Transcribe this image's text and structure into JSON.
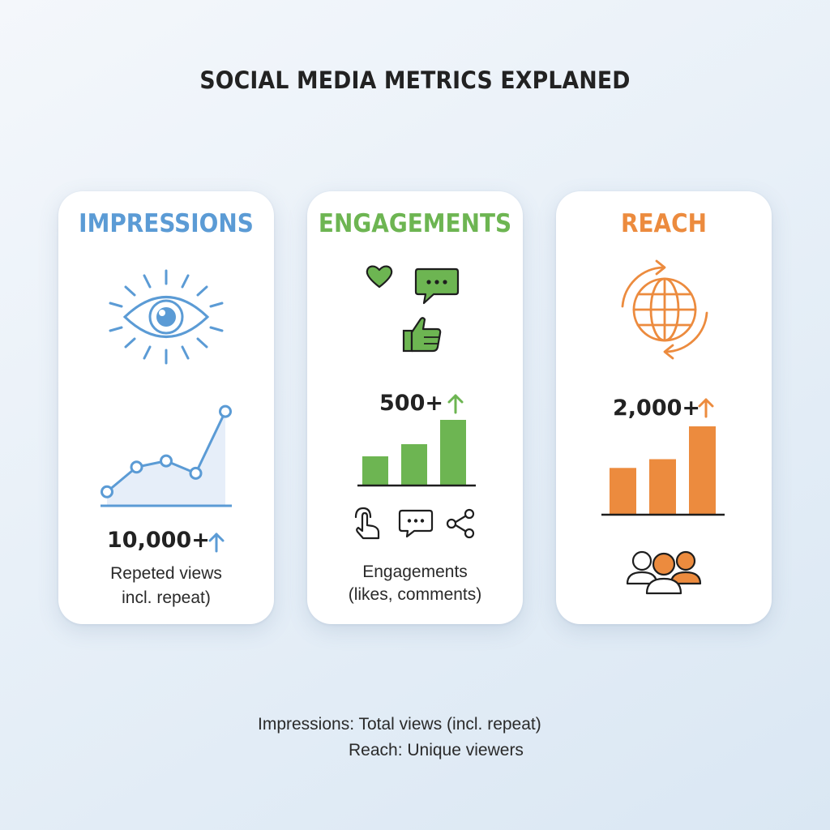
{
  "title": "SOCIAL MEDIA METRICS EXPLANED",
  "colors": {
    "impressions": "#5b9bd5",
    "engagements": "#6db552",
    "reach": "#ec8b3e"
  },
  "cards": [
    {
      "id": "impressions",
      "title": "IMPRESSIONS",
      "stat": "10,000+",
      "stat_trend": "up",
      "description_lines": [
        "Repeted views",
        "incl. repeat)"
      ],
      "icons": [
        "eye-icon",
        "line-chart-icon",
        "up-arrow-icon"
      ]
    },
    {
      "id": "engagements",
      "title": "ENGAGEMENTS",
      "stat": "500+",
      "stat_trend": "up",
      "description_lines": [
        "Engagements",
        "(likes, comments)"
      ],
      "icons": [
        "heart-icon",
        "chat-bubble-icon",
        "thumbs-up-icon",
        "tap-icon",
        "comment-icon",
        "share-icon"
      ]
    },
    {
      "id": "reach",
      "title": "REACH",
      "stat": "2,000+",
      "stat_trend": "up",
      "description_lines": [],
      "icons": [
        "globe-icon",
        "people-icon",
        "up-arrow-icon"
      ]
    }
  ],
  "chart_data": [
    {
      "type": "line",
      "card": "impressions",
      "x": [
        1,
        2,
        3,
        4,
        5
      ],
      "values": [
        1,
        3,
        3.5,
        2.5,
        7.5
      ],
      "ylim": [
        0,
        8
      ]
    },
    {
      "type": "bar",
      "card": "engagements",
      "categories": [
        "1",
        "2",
        "3"
      ],
      "values": [
        3.5,
        5,
        8
      ],
      "ylim": [
        0,
        8
      ]
    },
    {
      "type": "bar",
      "card": "reach",
      "categories": [
        "1",
        "2",
        "3"
      ],
      "values": [
        4.2,
        5,
        8
      ],
      "ylim": [
        0,
        8
      ]
    }
  ],
  "footer": {
    "line1": "Impressions: Total views (incl. repeat)",
    "line2": "Reach: Unique viewers"
  }
}
